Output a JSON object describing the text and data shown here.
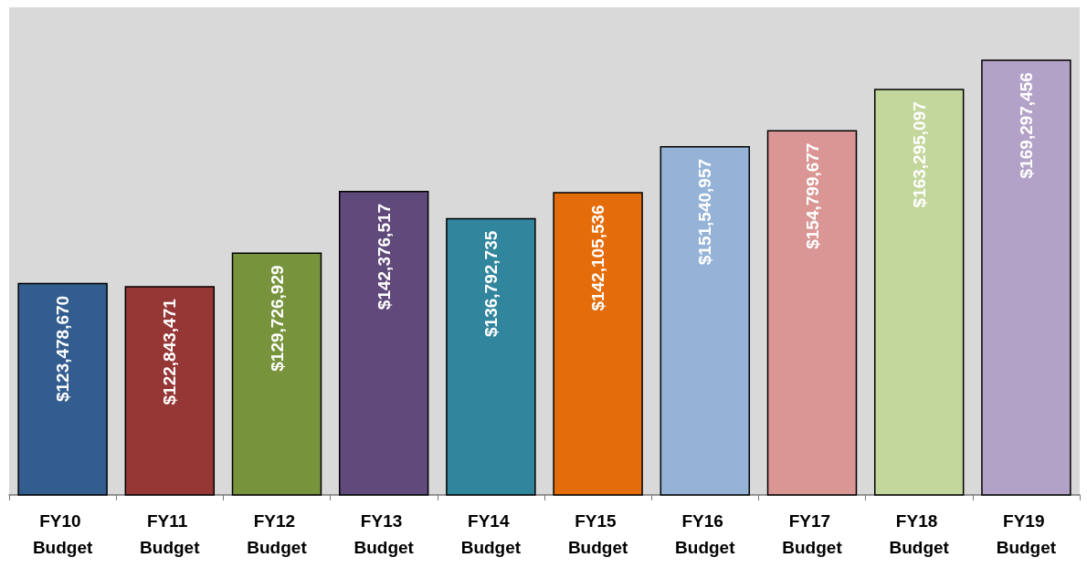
{
  "chart_data": {
    "type": "bar",
    "categories": [
      "FY10 Budget",
      "FY11 Budget",
      "FY12 Budget",
      "FY13 Budget",
      "FY14 Budget",
      "FY15 Budget",
      "FY16 Budget",
      "FY17 Budget",
      "FY18 Budget",
      "FY19 Budget"
    ],
    "values": [
      123478670,
      122843471,
      129726929,
      142376517,
      136792735,
      142105536,
      151540957,
      154799677,
      163295097,
      169297456
    ],
    "colors": [
      "#335d8f",
      "#953735",
      "#77933c",
      "#604a7b",
      "#31859c",
      "#e46c0a",
      "#95b3d7",
      "#d99694",
      "#c3d69b",
      "#b3a2c7"
    ],
    "value_labels": [
      "$123,478,670",
      "$122,843,471",
      "$129,726,929",
      "$142,376,517",
      "$136,792,735",
      "$142,105,536",
      "$151,540,957",
      "$154,799,677",
      "$163,295,097",
      "$169,297,456"
    ],
    "ylim": [
      80000000,
      180000000
    ],
    "tick_labels": "x"
  }
}
